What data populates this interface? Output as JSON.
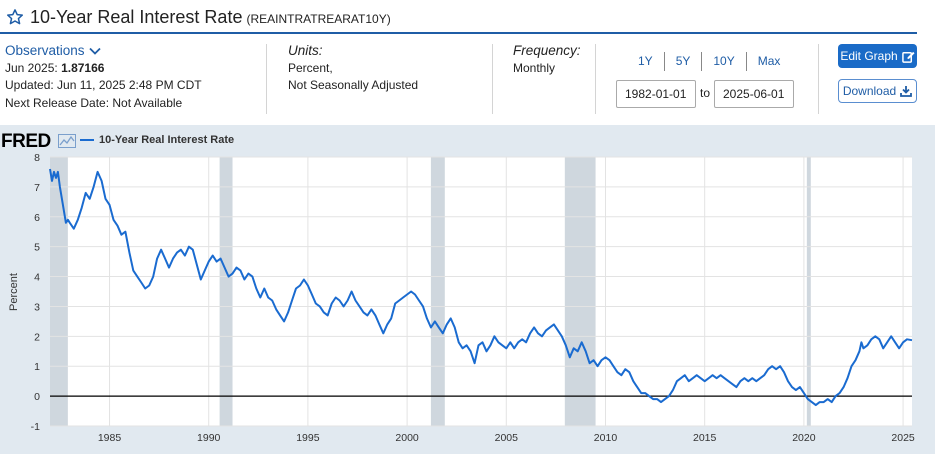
{
  "header": {
    "title": "10-Year Real Interest Rate",
    "series_id": "(REAINTRATREARAT10Y)"
  },
  "observations": {
    "heading": "Observations",
    "date": "Jun 2025:",
    "value": "1.87166",
    "updated": "Updated: Jun 11, 2025 2:48 PM CDT",
    "next_release": "Next Release Date: Not Available"
  },
  "units": {
    "heading": "Units:",
    "line1": "Percent,",
    "line2": "Not Seasonally Adjusted"
  },
  "frequency": {
    "heading": "Frequency:",
    "value": "Monthly"
  },
  "range": {
    "buttons": [
      "1Y",
      "5Y",
      "10Y",
      "Max"
    ],
    "start": "1982-01-01",
    "to_label": "to",
    "end": "2025-06-01"
  },
  "actions": {
    "edit_label": "Edit Graph",
    "download_label": "Download"
  },
  "colors": {
    "line": "#1a6bd0",
    "recession": "#cfd7de",
    "background": "#e1e9f0",
    "accent": "#1f5da6"
  },
  "logo": "FRED",
  "chart_data": {
    "type": "line",
    "ylabel": "Percent",
    "legend": "10-Year Real Interest Rate",
    "ylim": [
      -1,
      8
    ],
    "yticks": [
      -1,
      0,
      1,
      2,
      3,
      4,
      5,
      6,
      7,
      8
    ],
    "xlim": [
      1982.0,
      2025.45
    ],
    "xticks": [
      1985,
      1990,
      1995,
      2000,
      2005,
      2010,
      2015,
      2020,
      2025
    ],
    "zero_line": true,
    "recessions": [
      [
        1982.0,
        1982.9
      ],
      [
        1990.55,
        1991.2
      ],
      [
        2001.2,
        2001.9
      ],
      [
        2007.95,
        2009.5
      ],
      [
        2020.15,
        2020.35
      ]
    ],
    "series": [
      {
        "name": "10-Year Real Interest Rate",
        "points": [
          [
            1982.0,
            7.6
          ],
          [
            1982.1,
            7.2
          ],
          [
            1982.2,
            7.5
          ],
          [
            1982.3,
            7.3
          ],
          [
            1982.4,
            7.5
          ],
          [
            1982.5,
            7.0
          ],
          [
            1982.6,
            6.6
          ],
          [
            1982.7,
            6.2
          ],
          [
            1982.8,
            5.8
          ],
          [
            1982.9,
            5.9
          ],
          [
            1983.0,
            5.8
          ],
          [
            1983.2,
            5.6
          ],
          [
            1983.4,
            5.9
          ],
          [
            1983.6,
            6.3
          ],
          [
            1983.8,
            6.8
          ],
          [
            1984.0,
            6.6
          ],
          [
            1984.2,
            7.0
          ],
          [
            1984.4,
            7.5
          ],
          [
            1984.6,
            7.2
          ],
          [
            1984.8,
            6.6
          ],
          [
            1985.0,
            6.4
          ],
          [
            1985.2,
            5.9
          ],
          [
            1985.4,
            5.7
          ],
          [
            1985.6,
            5.4
          ],
          [
            1985.8,
            5.5
          ],
          [
            1986.0,
            4.8
          ],
          [
            1986.2,
            4.2
          ],
          [
            1986.4,
            4.0
          ],
          [
            1986.6,
            3.8
          ],
          [
            1986.8,
            3.6
          ],
          [
            1987.0,
            3.7
          ],
          [
            1987.2,
            4.0
          ],
          [
            1987.4,
            4.6
          ],
          [
            1987.6,
            4.9
          ],
          [
            1987.8,
            4.6
          ],
          [
            1988.0,
            4.3
          ],
          [
            1988.2,
            4.6
          ],
          [
            1988.4,
            4.8
          ],
          [
            1988.6,
            4.9
          ],
          [
            1988.8,
            4.7
          ],
          [
            1989.0,
            5.0
          ],
          [
            1989.2,
            4.9
          ],
          [
            1989.4,
            4.4
          ],
          [
            1989.6,
            3.9
          ],
          [
            1989.8,
            4.2
          ],
          [
            1990.0,
            4.5
          ],
          [
            1990.2,
            4.7
          ],
          [
            1990.4,
            4.5
          ],
          [
            1990.6,
            4.6
          ],
          [
            1990.8,
            4.3
          ],
          [
            1991.0,
            4.0
          ],
          [
            1991.2,
            4.1
          ],
          [
            1991.4,
            4.3
          ],
          [
            1991.6,
            4.2
          ],
          [
            1991.8,
            3.9
          ],
          [
            1992.0,
            4.1
          ],
          [
            1992.2,
            4.0
          ],
          [
            1992.4,
            3.6
          ],
          [
            1992.6,
            3.3
          ],
          [
            1992.8,
            3.6
          ],
          [
            1993.0,
            3.3
          ],
          [
            1993.2,
            3.2
          ],
          [
            1993.4,
            2.9
          ],
          [
            1993.6,
            2.7
          ],
          [
            1993.8,
            2.5
          ],
          [
            1994.0,
            2.8
          ],
          [
            1994.2,
            3.2
          ],
          [
            1994.4,
            3.6
          ],
          [
            1994.6,
            3.7
          ],
          [
            1994.8,
            3.9
          ],
          [
            1995.0,
            3.7
          ],
          [
            1995.2,
            3.4
          ],
          [
            1995.4,
            3.1
          ],
          [
            1995.6,
            3.0
          ],
          [
            1995.8,
            2.8
          ],
          [
            1996.0,
            2.7
          ],
          [
            1996.2,
            3.1
          ],
          [
            1996.4,
            3.3
          ],
          [
            1996.6,
            3.2
          ],
          [
            1996.8,
            3.0
          ],
          [
            1997.0,
            3.2
          ],
          [
            1997.2,
            3.5
          ],
          [
            1997.4,
            3.2
          ],
          [
            1997.6,
            3.0
          ],
          [
            1997.8,
            2.8
          ],
          [
            1998.0,
            2.7
          ],
          [
            1998.2,
            2.9
          ],
          [
            1998.4,
            2.7
          ],
          [
            1998.6,
            2.4
          ],
          [
            1998.8,
            2.1
          ],
          [
            1999.0,
            2.4
          ],
          [
            1999.2,
            2.6
          ],
          [
            1999.4,
            3.1
          ],
          [
            1999.6,
            3.2
          ],
          [
            1999.8,
            3.3
          ],
          [
            2000.0,
            3.4
          ],
          [
            2000.2,
            3.5
          ],
          [
            2000.4,
            3.4
          ],
          [
            2000.6,
            3.2
          ],
          [
            2000.8,
            3.0
          ],
          [
            2001.0,
            2.6
          ],
          [
            2001.2,
            2.3
          ],
          [
            2001.4,
            2.5
          ],
          [
            2001.6,
            2.3
          ],
          [
            2001.8,
            2.1
          ],
          [
            2002.0,
            2.4
          ],
          [
            2002.2,
            2.6
          ],
          [
            2002.4,
            2.3
          ],
          [
            2002.6,
            1.8
          ],
          [
            2002.8,
            1.6
          ],
          [
            2003.0,
            1.7
          ],
          [
            2003.2,
            1.5
          ],
          [
            2003.4,
            1.1
          ],
          [
            2003.6,
            1.7
          ],
          [
            2003.8,
            1.8
          ],
          [
            2004.0,
            1.5
          ],
          [
            2004.2,
            1.7
          ],
          [
            2004.4,
            2.0
          ],
          [
            2004.6,
            1.8
          ],
          [
            2004.8,
            1.7
          ],
          [
            2005.0,
            1.6
          ],
          [
            2005.2,
            1.8
          ],
          [
            2005.4,
            1.6
          ],
          [
            2005.6,
            1.8
          ],
          [
            2005.8,
            1.9
          ],
          [
            2006.0,
            1.8
          ],
          [
            2006.2,
            2.1
          ],
          [
            2006.4,
            2.3
          ],
          [
            2006.6,
            2.1
          ],
          [
            2006.8,
            2.0
          ],
          [
            2007.0,
            2.2
          ],
          [
            2007.2,
            2.3
          ],
          [
            2007.4,
            2.4
          ],
          [
            2007.6,
            2.2
          ],
          [
            2007.8,
            2.0
          ],
          [
            2008.0,
            1.7
          ],
          [
            2008.2,
            1.3
          ],
          [
            2008.4,
            1.6
          ],
          [
            2008.6,
            1.5
          ],
          [
            2008.8,
            1.8
          ],
          [
            2009.0,
            1.5
          ],
          [
            2009.2,
            1.1
          ],
          [
            2009.4,
            1.2
          ],
          [
            2009.6,
            1.0
          ],
          [
            2009.8,
            1.2
          ],
          [
            2010.0,
            1.3
          ],
          [
            2010.2,
            1.2
          ],
          [
            2010.4,
            1.0
          ],
          [
            2010.6,
            0.8
          ],
          [
            2010.8,
            0.7
          ],
          [
            2011.0,
            0.9
          ],
          [
            2011.2,
            0.8
          ],
          [
            2011.4,
            0.5
          ],
          [
            2011.6,
            0.3
          ],
          [
            2011.8,
            0.1
          ],
          [
            2012.0,
            0.1
          ],
          [
            2012.2,
            0.0
          ],
          [
            2012.4,
            -0.1
          ],
          [
            2012.6,
            -0.1
          ],
          [
            2012.8,
            -0.2
          ],
          [
            2013.0,
            -0.1
          ],
          [
            2013.2,
            0.0
          ],
          [
            2013.4,
            0.2
          ],
          [
            2013.6,
            0.5
          ],
          [
            2013.8,
            0.6
          ],
          [
            2014.0,
            0.7
          ],
          [
            2014.2,
            0.5
          ],
          [
            2014.4,
            0.6
          ],
          [
            2014.6,
            0.7
          ],
          [
            2014.8,
            0.6
          ],
          [
            2015.0,
            0.5
          ],
          [
            2015.2,
            0.6
          ],
          [
            2015.4,
            0.7
          ],
          [
            2015.6,
            0.6
          ],
          [
            2015.8,
            0.7
          ],
          [
            2016.0,
            0.6
          ],
          [
            2016.2,
            0.5
          ],
          [
            2016.4,
            0.4
          ],
          [
            2016.6,
            0.3
          ],
          [
            2016.8,
            0.5
          ],
          [
            2017.0,
            0.6
          ],
          [
            2017.2,
            0.5
          ],
          [
            2017.4,
            0.6
          ],
          [
            2017.6,
            0.5
          ],
          [
            2017.8,
            0.6
          ],
          [
            2018.0,
            0.7
          ],
          [
            2018.2,
            0.9
          ],
          [
            2018.4,
            1.0
          ],
          [
            2018.6,
            0.9
          ],
          [
            2018.8,
            1.0
          ],
          [
            2019.0,
            0.8
          ],
          [
            2019.2,
            0.5
          ],
          [
            2019.4,
            0.3
          ],
          [
            2019.6,
            0.2
          ],
          [
            2019.8,
            0.3
          ],
          [
            2020.0,
            0.1
          ],
          [
            2020.2,
            -0.1
          ],
          [
            2020.4,
            -0.2
          ],
          [
            2020.6,
            -0.3
          ],
          [
            2020.8,
            -0.2
          ],
          [
            2021.0,
            -0.2
          ],
          [
            2021.2,
            -0.1
          ],
          [
            2021.4,
            -0.2
          ],
          [
            2021.6,
            0.0
          ],
          [
            2021.8,
            0.1
          ],
          [
            2022.0,
            0.3
          ],
          [
            2022.2,
            0.6
          ],
          [
            2022.4,
            1.0
          ],
          [
            2022.6,
            1.2
          ],
          [
            2022.8,
            1.5
          ],
          [
            2022.9,
            1.8
          ],
          [
            2023.0,
            1.6
          ],
          [
            2023.2,
            1.7
          ],
          [
            2023.4,
            1.9
          ],
          [
            2023.6,
            2.0
          ],
          [
            2023.8,
            1.9
          ],
          [
            2024.0,
            1.6
          ],
          [
            2024.2,
            1.8
          ],
          [
            2024.4,
            2.0
          ],
          [
            2024.6,
            1.8
          ],
          [
            2024.8,
            1.6
          ],
          [
            2025.0,
            1.8
          ],
          [
            2025.2,
            1.9
          ],
          [
            2025.45,
            1.87
          ]
        ]
      }
    ]
  }
}
